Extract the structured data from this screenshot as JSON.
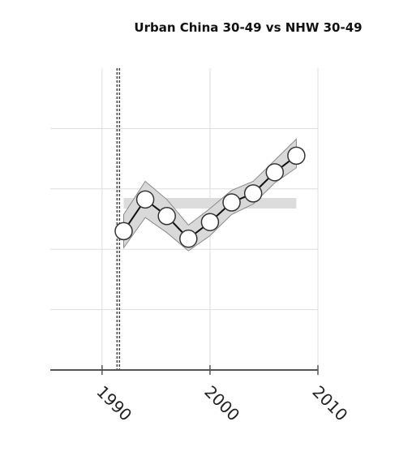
{
  "chart_data": {
    "type": "line",
    "title": "Urban China 30-49 vs NHW 30-49",
    "xlabel": "",
    "ylabel": "",
    "xlim": [
      1985.2,
      2010
    ],
    "ylim": [
      0,
      1
    ],
    "x_ticks": [
      1990,
      2000,
      2010
    ],
    "x_tick_labels": [
      "1990",
      "2000",
      "2010"
    ],
    "y_gridlines": [
      0.2,
      0.4,
      0.6,
      0.8
    ],
    "grid": true,
    "reference_line_x": 1991.5,
    "reference_band": {
      "x": [
        1992,
        2008
      ],
      "y": [
        0.535,
        0.57
      ]
    },
    "series": [
      {
        "x": [
          1992,
          1994,
          1996,
          1998,
          2000,
          2002,
          2004,
          2006,
          2008
        ],
        "y": [
          0.46,
          0.565,
          0.51,
          0.435,
          0.49,
          0.555,
          0.585,
          0.655,
          0.71
        ],
        "lower": [
          0.405,
          0.505,
          0.455,
          0.395,
          0.445,
          0.515,
          0.55,
          0.62,
          0.67
        ],
        "upper": [
          0.515,
          0.625,
          0.565,
          0.48,
          0.535,
          0.595,
          0.625,
          0.695,
          0.765
        ]
      }
    ],
    "colors": {
      "line": "#111111",
      "marker_fill": "#ffffff",
      "ci_band": "#d9d9d9",
      "reference_band": "#dcdcdc",
      "grid": "#dddddd",
      "axis": "#555555"
    }
  }
}
